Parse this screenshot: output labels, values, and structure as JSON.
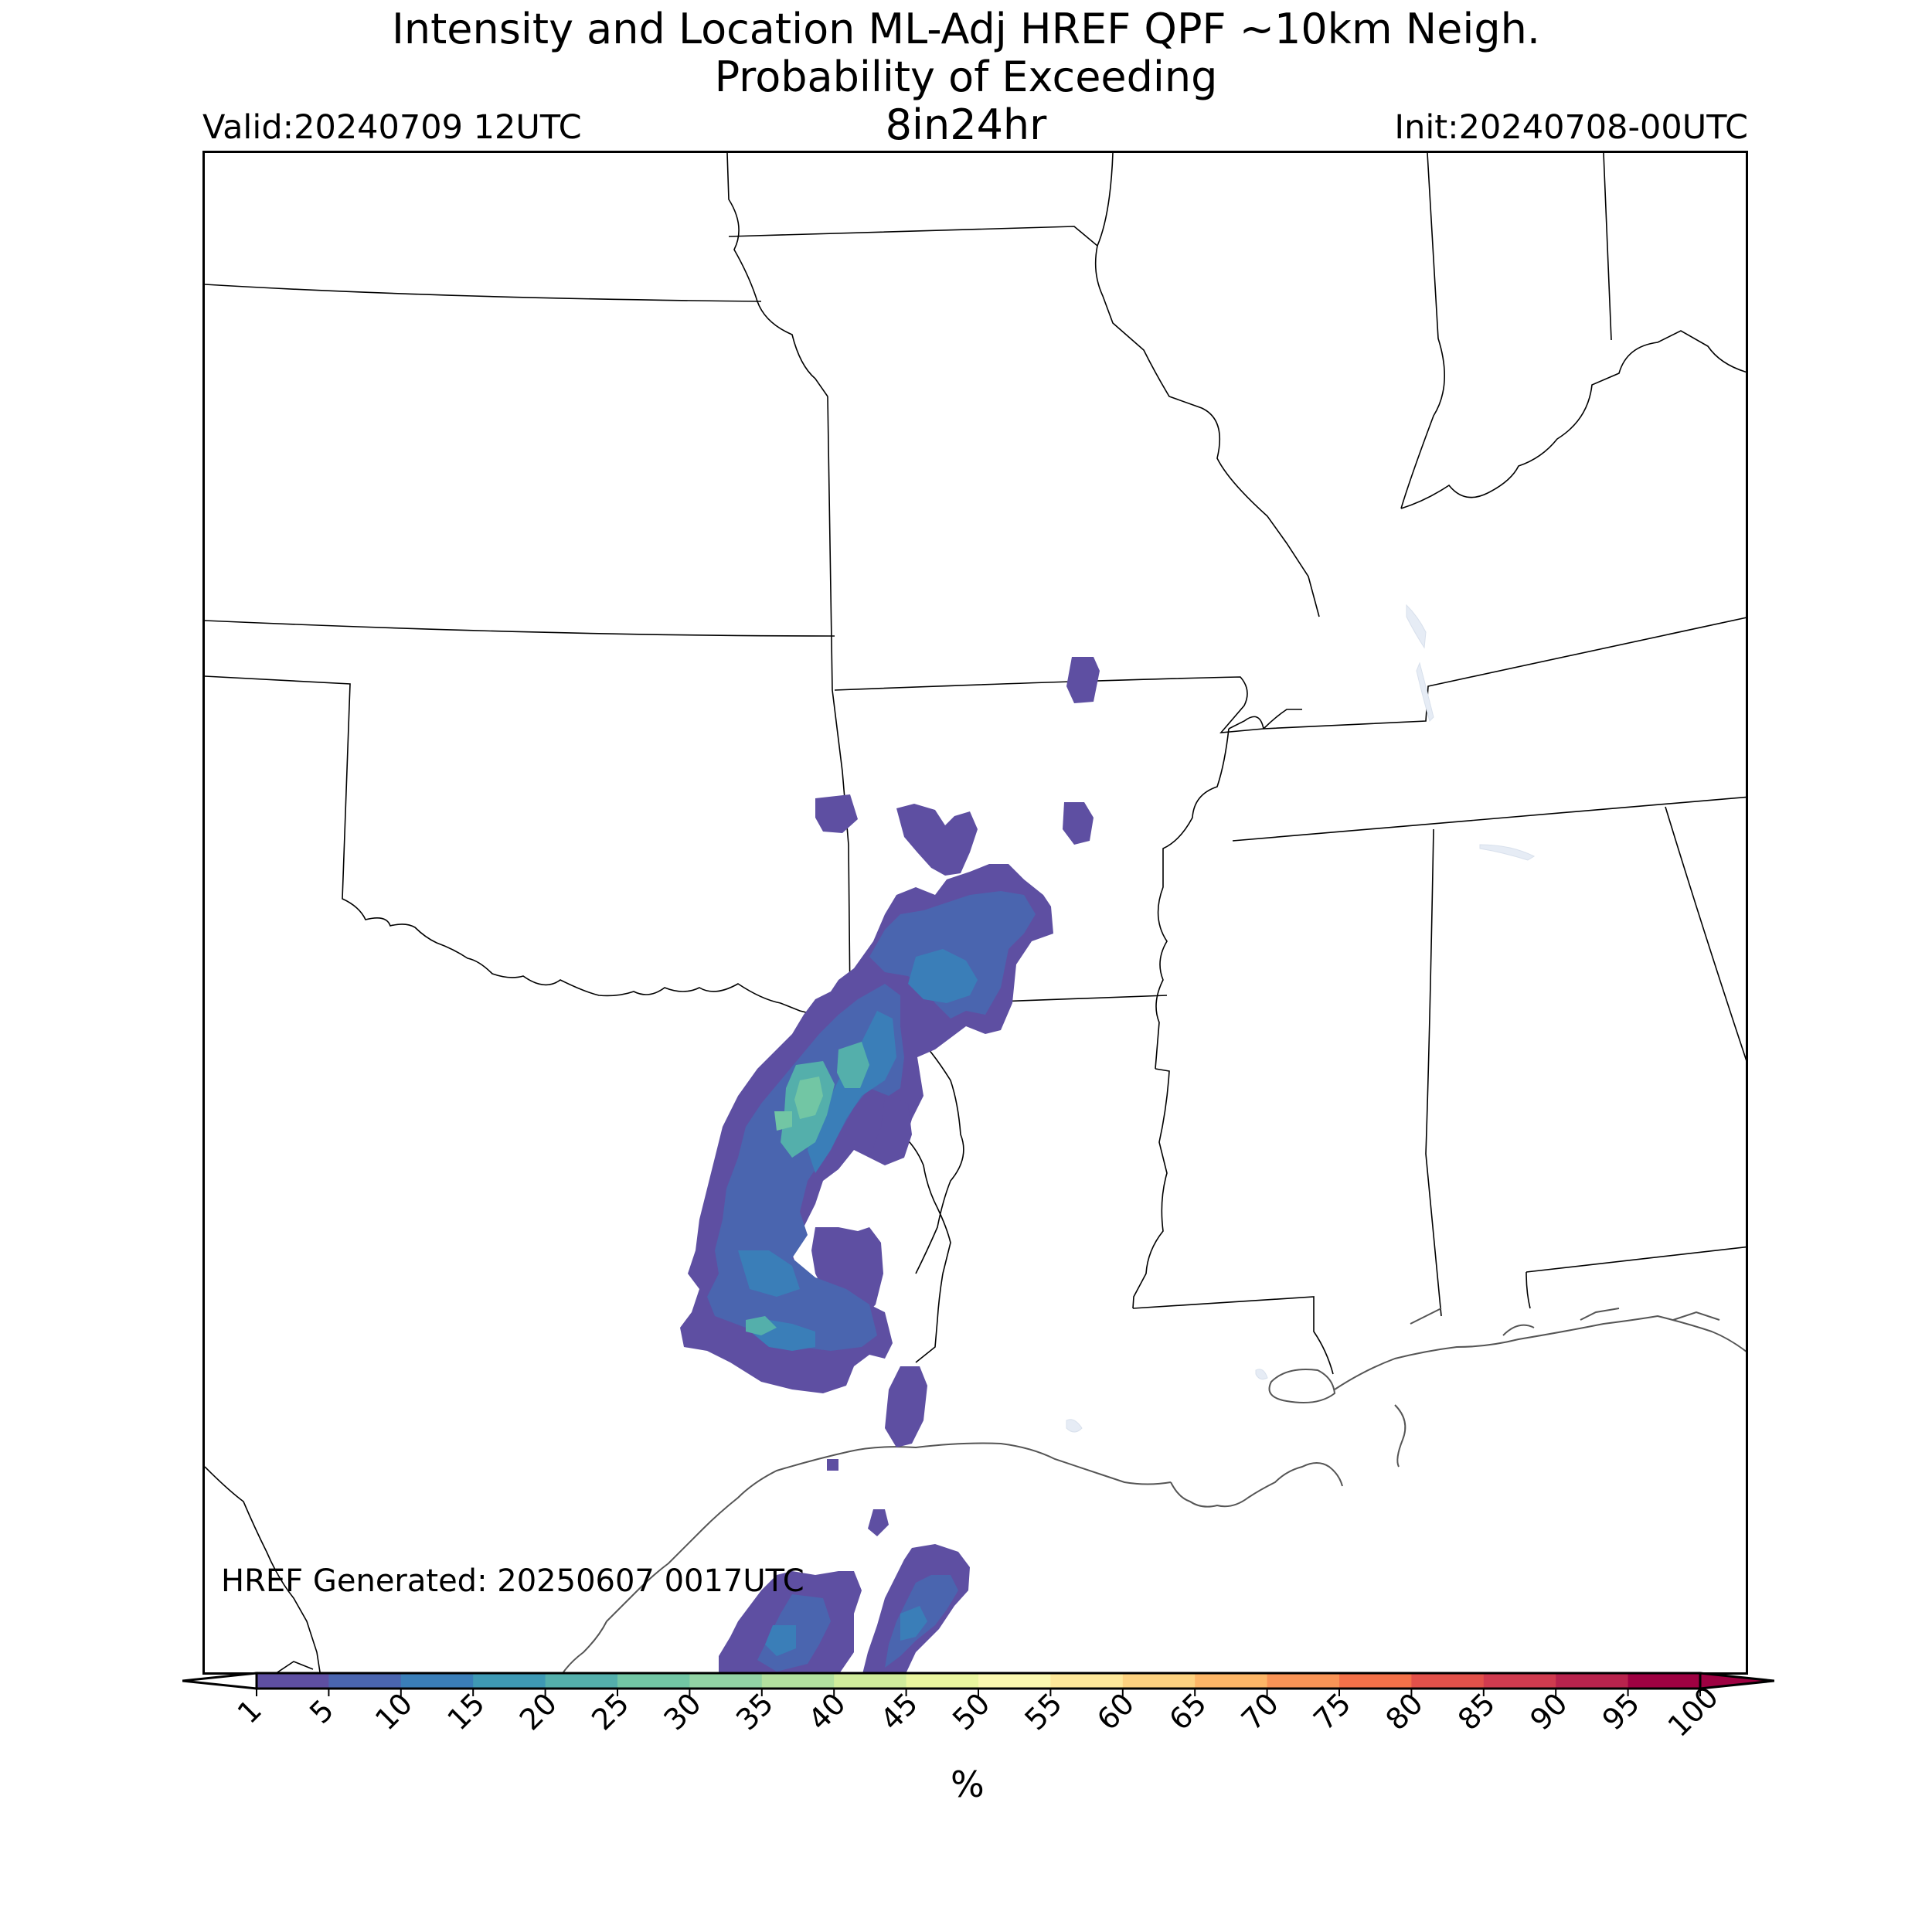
{
  "title": {
    "line1": "Intensity and Location ML-Adj HREF QPF ~10km Neigh.",
    "line2": "Probability of Exceeding",
    "threshold": "8in24hr",
    "valid": "Valid:20240709 12UTC",
    "init": "Init:20240708-00UTC"
  },
  "annotation": {
    "generated": "HREF Generated: 20250607 0017UTC"
  },
  "colorbar": {
    "unit": "%",
    "ticks": [
      "1",
      "5",
      "10",
      "15",
      "20",
      "25",
      "30",
      "35",
      "40",
      "45",
      "50",
      "55",
      "60",
      "65",
      "70",
      "75",
      "80",
      "85",
      "90",
      "95",
      "100"
    ],
    "colors": [
      "#5e4fa2",
      "#4a65af",
      "#3a7eb8",
      "#3e99b4",
      "#54afab",
      "#72c6a4",
      "#92d3a4",
      "#b2e09f",
      "#d0ec9c",
      "#eaf69f",
      "#fbf8b0",
      "#fee89a",
      "#fdd280",
      "#fdb667",
      "#f99456",
      "#f47149",
      "#e2514a",
      "#d03b4f",
      "#b8234d",
      "#9e0142"
    ],
    "under_color": "#ffffff",
    "over_color": "#9e0142"
  },
  "map": {
    "region": "South-central United States",
    "state_borders": true,
    "coastline": true,
    "probability_field_colors": [
      "#5e4fa2",
      "#4a65af",
      "#3a7eb8",
      "#54afab",
      "#72c6a4"
    ]
  }
}
